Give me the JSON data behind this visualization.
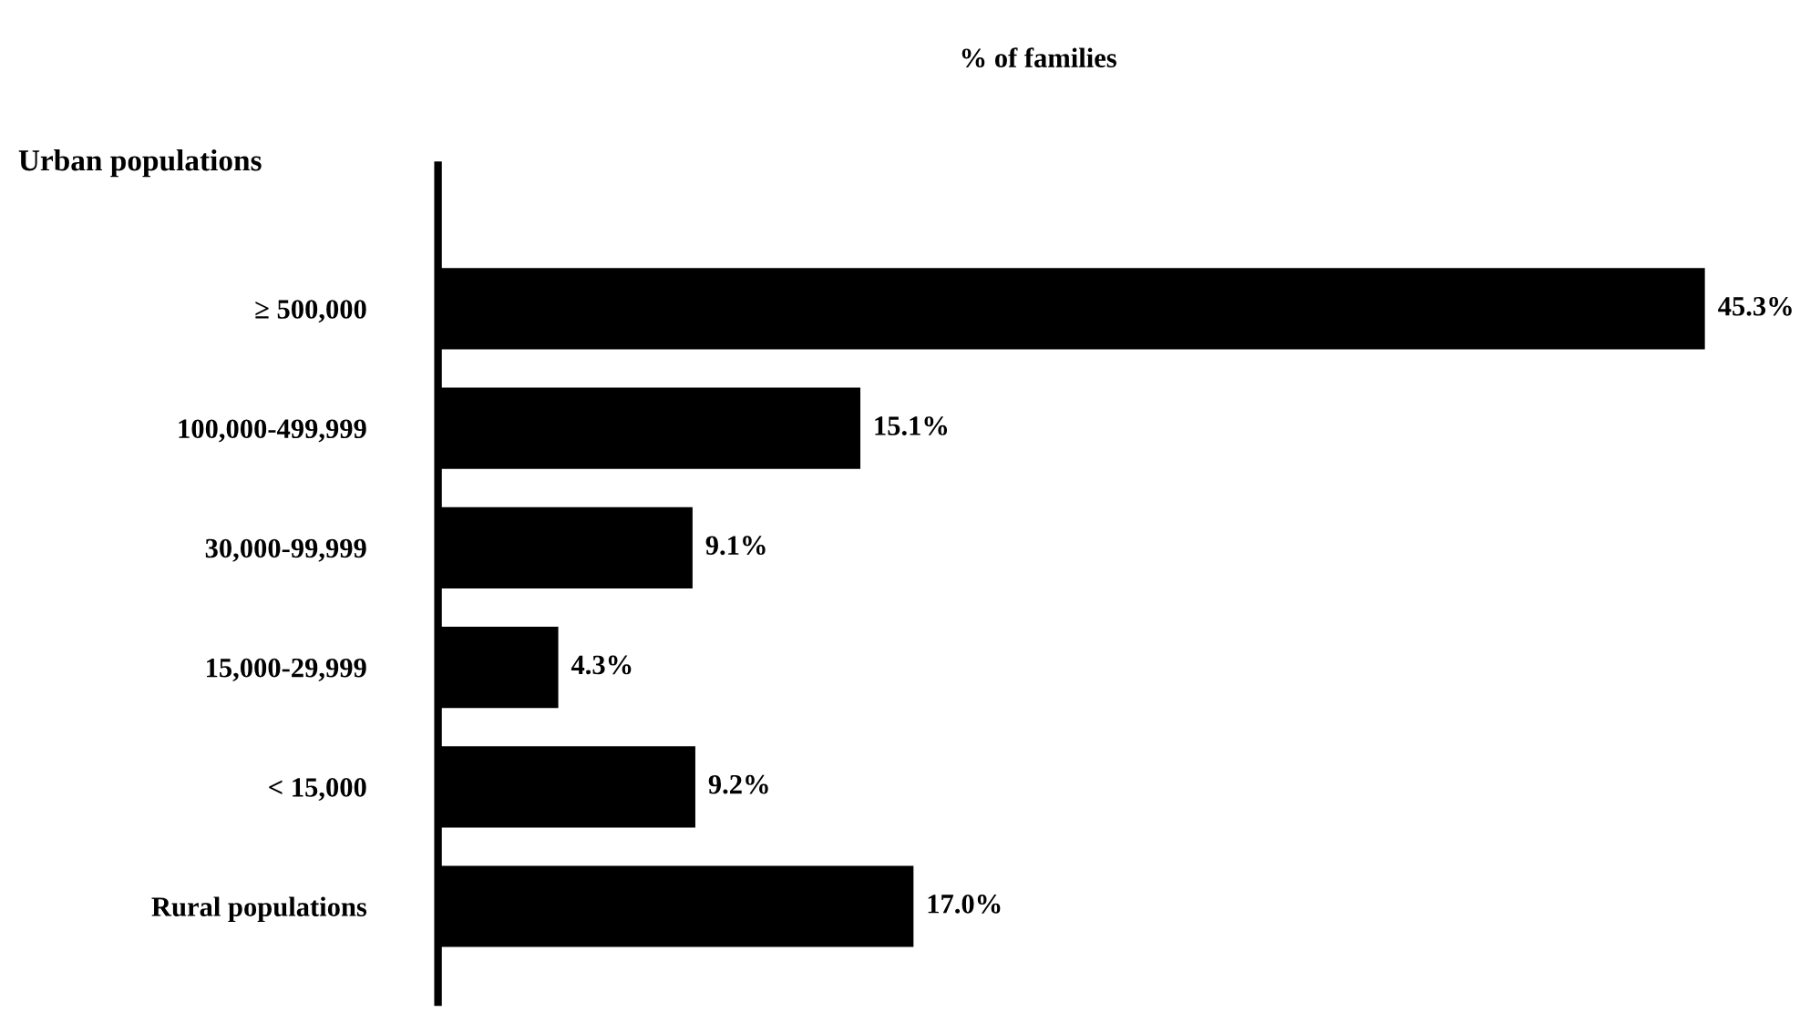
{
  "chart_data": {
    "type": "bar",
    "orientation": "horizontal",
    "xlabel": "% of families",
    "annotations": [
      "Urban populations"
    ],
    "categories": [
      "≥ 500,000",
      "100,000-499,999",
      "30,000-99,999",
      "15,000-29,999",
      "< 15,000",
      "Rural populations"
    ],
    "values": [
      45.3,
      15.1,
      9.1,
      4.3,
      9.2,
      17.0
    ],
    "value_labels": [
      "45.3%",
      "15.1%",
      "9.1%",
      "4.3%",
      "9.2%",
      "17.0%"
    ],
    "color": "#000000",
    "tick_labels": "y",
    "grid": false
  }
}
